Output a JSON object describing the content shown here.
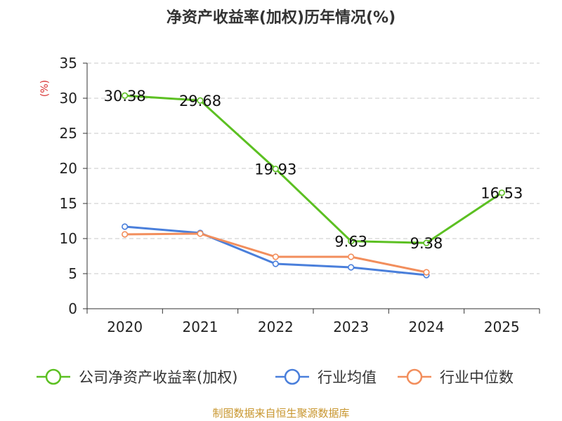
{
  "chart_data": {
    "type": "line",
    "title": "净资产收益率(加权)历年情况(%)",
    "ylabel": "(%)",
    "xlabel": "",
    "categories": [
      "2020",
      "2021",
      "2022",
      "2023",
      "2024",
      "2025"
    ],
    "ylim": [
      0,
      35
    ],
    "yticks": [
      0,
      5,
      10,
      15,
      20,
      25,
      30,
      35
    ],
    "grid": true,
    "legend_position": "bottom",
    "series": [
      {
        "name": "公司净资产收益率(加权)",
        "color": "#5cc022",
        "values": [
          30.38,
          29.68,
          19.93,
          9.63,
          9.38,
          16.53
        ],
        "labels": [
          "30.38",
          "29.68",
          "19.93",
          "9.63",
          "9.38",
          "16.53"
        ]
      },
      {
        "name": "行业均值",
        "color": "#4a7fdb",
        "values": [
          11.7,
          10.8,
          6.4,
          5.9,
          4.8,
          null
        ]
      },
      {
        "name": "行业中位数",
        "color": "#f28e5c",
        "values": [
          10.6,
          10.7,
          7.4,
          7.4,
          5.2,
          null
        ]
      }
    ],
    "source": "制图数据来自恒生聚源数据库",
    "source_color": "#c8962e",
    "ylabel_color": "#d83030"
  }
}
